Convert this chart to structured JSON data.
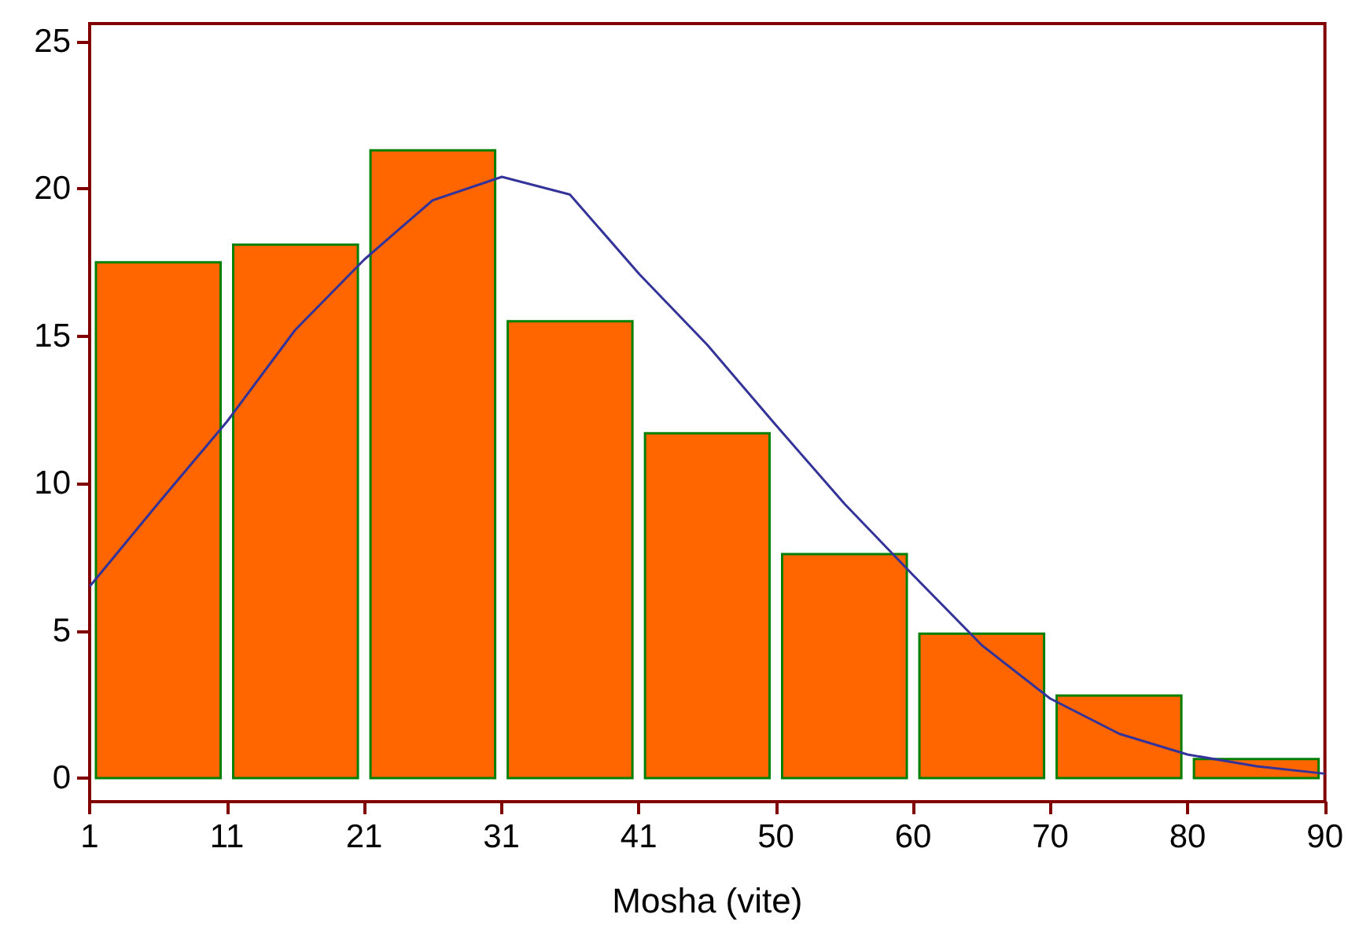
{
  "chart_data": {
    "type": "histogram",
    "xlabel": "Mosha (vite)",
    "bins": [
      1,
      10.89,
      20.78,
      30.67,
      40.56,
      50.44,
      60.33,
      70.22,
      80.11,
      90
    ],
    "values": [
      17.5,
      18.1,
      21.3,
      15.5,
      11.7,
      7.6,
      4.9,
      2.8,
      0.65
    ],
    "color": "#ff6600",
    "series": [
      {
        "type": "line",
        "color": "#333399",
        "x": [
          1,
          5.9,
          10.9,
          15.8,
          20.8,
          25.7,
          30.7,
          35.6,
          40.6,
          45.5,
          50.4,
          55.4,
          60.3,
          65.3,
          70.2,
          75.2,
          80.1,
          85.1,
          90
        ],
        "values": [
          6.5,
          9.3,
          12.1,
          15.2,
          17.6,
          19.6,
          20.4,
          19.8,
          17.1,
          14.7,
          12.0,
          9.3,
          6.9,
          4.5,
          2.7,
          1.5,
          0.8,
          0.4,
          0.15
        ]
      }
    ],
    "xlim": [
      1,
      90
    ],
    "xticks": [
      1,
      {
        "value": 10.89,
        "label": "11"
      },
      {
        "value": 20.78,
        "label": "21"
      },
      {
        "value": 30.67,
        "label": "31"
      },
      {
        "value": 40.56,
        "label": "41"
      },
      {
        "value": 50.44,
        "label": "50"
      },
      {
        "value": 60.33,
        "label": "60"
      },
      {
        "value": 70.22,
        "label": "70"
      },
      {
        "value": 80.11,
        "label": "80"
      },
      90
    ],
    "ylim": [
      -0.8,
      25.6
    ],
    "yticks": [
      0,
      5,
      10,
      15,
      20,
      25
    ],
    "grid": false,
    "marker": "none",
    "line_style": "solid"
  }
}
